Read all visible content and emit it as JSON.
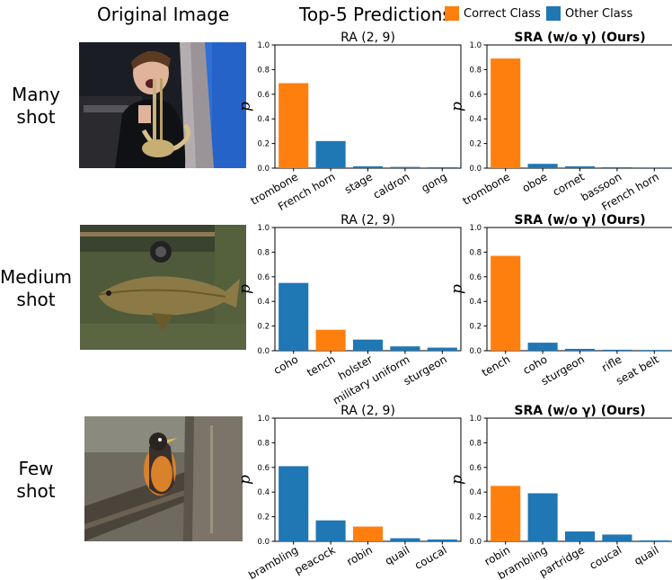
{
  "header": {
    "original_image": "Original Image",
    "top5": "Top-5 Predictions"
  },
  "legend": [
    {
      "label": "Correct Class",
      "color": "#ff7f0e"
    },
    {
      "label": "Other Class",
      "color": "#1f77b4"
    }
  ],
  "rows": [
    {
      "label_lines": [
        "Many",
        "shot"
      ],
      "image_icon": "photo-person-with-trombone"
    },
    {
      "label_lines": [
        "Medium",
        "shot"
      ],
      "image_icon": "photo-tench-fish"
    },
    {
      "label_lines": [
        "Few",
        "shot"
      ],
      "image_icon": "photo-robin-on-tree"
    }
  ],
  "chart_data": [
    {
      "type": "bar",
      "row": 0,
      "col": 0,
      "title": "RA (2, 9)",
      "title_bold": false,
      "ylabel": "p",
      "ylim": [
        0,
        1.0
      ],
      "yticks": [
        "0.0",
        "0.2",
        "0.4",
        "0.6",
        "0.8",
        "1.0"
      ],
      "categories": [
        "trombone",
        "French horn",
        "stage",
        "caldron",
        "gong"
      ],
      "values": [
        0.69,
        0.22,
        0.015,
        0.01,
        0.008
      ],
      "correct": [
        true,
        false,
        false,
        false,
        false
      ]
    },
    {
      "type": "bar",
      "row": 0,
      "col": 1,
      "title": "SRA (w/o γ) (Ours)",
      "title_bold": true,
      "ylabel": "p",
      "ylim": [
        0,
        1.0
      ],
      "yticks": [
        "0.0",
        "0.2",
        "0.4",
        "0.6",
        "0.8",
        "1.0"
      ],
      "categories": [
        "trombone",
        "oboe",
        "cornet",
        "bassoon",
        "French horn"
      ],
      "values": [
        0.89,
        0.035,
        0.015,
        0.008,
        0.006
      ],
      "correct": [
        true,
        false,
        false,
        false,
        false
      ]
    },
    {
      "type": "bar",
      "row": 1,
      "col": 0,
      "title": "RA (2, 9)",
      "title_bold": false,
      "ylabel": "p",
      "ylim": [
        0,
        1.0
      ],
      "yticks": [
        "0.0",
        "0.2",
        "0.4",
        "0.6",
        "0.8",
        "1.0"
      ],
      "categories": [
        "coho",
        "tench",
        "holster",
        "military uniform",
        "sturgeon"
      ],
      "values": [
        0.55,
        0.17,
        0.09,
        0.035,
        0.025
      ],
      "correct": [
        false,
        true,
        false,
        false,
        false
      ]
    },
    {
      "type": "bar",
      "row": 1,
      "col": 1,
      "title": "SRA (w/o γ) (Ours)",
      "title_bold": true,
      "ylabel": "p",
      "ylim": [
        0,
        1.0
      ],
      "yticks": [
        "0.0",
        "0.2",
        "0.4",
        "0.6",
        "0.8",
        "1.0"
      ],
      "categories": [
        "tench",
        "coho",
        "sturgeon",
        "rifle",
        "seat belt"
      ],
      "values": [
        0.77,
        0.065,
        0.015,
        0.008,
        0.006
      ],
      "correct": [
        true,
        false,
        false,
        false,
        false
      ]
    },
    {
      "type": "bar",
      "row": 2,
      "col": 0,
      "title": "RA (2, 9)",
      "title_bold": false,
      "ylabel": "p",
      "ylim": [
        0,
        1.0
      ],
      "yticks": [
        "0.0",
        "0.2",
        "0.4",
        "0.6",
        "0.8",
        "1.0"
      ],
      "categories": [
        "brambling",
        "peacock",
        "robin",
        "quail",
        "coucal"
      ],
      "values": [
        0.61,
        0.17,
        0.12,
        0.025,
        0.015
      ],
      "correct": [
        false,
        false,
        true,
        false,
        false
      ]
    },
    {
      "type": "bar",
      "row": 2,
      "col": 1,
      "title": "SRA (w/o γ) (Ours)",
      "title_bold": true,
      "ylabel": "p",
      "ylim": [
        0,
        1.0
      ],
      "yticks": [
        "0.0",
        "0.2",
        "0.4",
        "0.6",
        "0.8",
        "1.0"
      ],
      "categories": [
        "robin",
        "brambling",
        "partridge",
        "coucal",
        "quail"
      ],
      "values": [
        0.45,
        0.39,
        0.08,
        0.055,
        0.008
      ],
      "correct": [
        true,
        false,
        false,
        false,
        false
      ]
    }
  ]
}
